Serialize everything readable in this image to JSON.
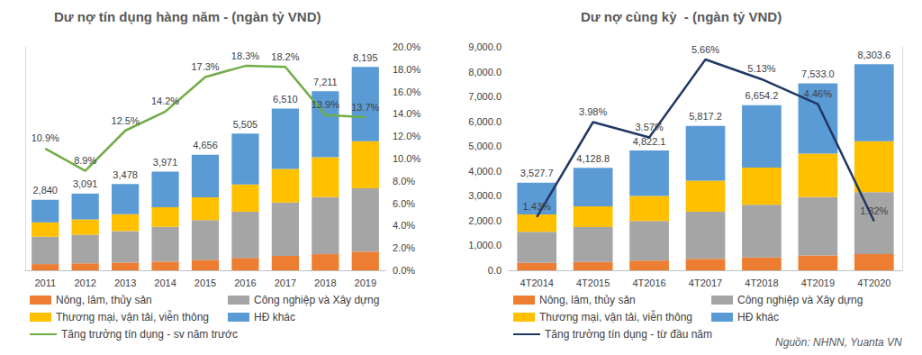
{
  "chart_data": [
    {
      "type": "bar",
      "title": "Dư nợ tín dụng hàng năm - (ngàn tỷ VND)",
      "categories": [
        "2011",
        "2012",
        "2013",
        "2014",
        "2015",
        "2016",
        "2017",
        "2018",
        "2019"
      ],
      "stacked": true,
      "data_labels": true,
      "ylim": [
        0,
        9000
      ],
      "yticks": [],
      "y2lim": [
        0,
        20
      ],
      "y2ticks": [
        {
          "value": 0,
          "label": "0.0%"
        },
        {
          "value": 2,
          "label": "2.0%"
        },
        {
          "value": 4,
          "label": "4.0%"
        },
        {
          "value": 6,
          "label": "6.0%"
        },
        {
          "value": 8,
          "label": "8.0%"
        },
        {
          "value": 10,
          "label": "10.0%"
        },
        {
          "value": 12,
          "label": "12.0%"
        },
        {
          "value": 14,
          "label": "14.0%"
        },
        {
          "value": 16,
          "label": "16.0%"
        },
        {
          "value": 18,
          "label": "18.0%"
        },
        {
          "value": 20,
          "label": "20.0%"
        }
      ],
      "totals": [
        2840,
        3091,
        3478,
        3971,
        4656,
        5505,
        6510,
        7211,
        8195
      ],
      "total_labels": [
        "2,840",
        "3,091",
        "3,478",
        "3,971",
        "4,656",
        "5,505",
        "6,510",
        "7,211",
        "8,195"
      ],
      "series": [
        {
          "name": "Nông, lâm, thủy sản",
          "color": "#ED7D31",
          "values": [
            250,
            280,
            310,
            350,
            420,
            500,
            580,
            650,
            750
          ]
        },
        {
          "name": "Công nghiệp và Xây dựng",
          "color": "#A5A5A5",
          "values": [
            1100,
            1150,
            1270,
            1400,
            1600,
            1860,
            2150,
            2300,
            2550
          ]
        },
        {
          "name": "Thương mại, vận tải, viễn thông",
          "color": "#FFC000",
          "values": [
            580,
            620,
            680,
            790,
            920,
            1100,
            1350,
            1600,
            1900
          ]
        },
        {
          "name": "HĐ khác",
          "color": "#5B9BD5",
          "values": [
            910,
            1041,
            1218,
            1431,
            1716,
            2045,
            2430,
            2661,
            2995
          ]
        },
        {
          "name": "Tăng trưởng tín dụng - sv năm trước",
          "type": "line",
          "axis": "y2",
          "color": "#70AD47",
          "values": [
            10.9,
            8.9,
            12.5,
            14.2,
            17.3,
            18.3,
            18.2,
            13.9,
            13.7
          ],
          "value_labels": [
            "10.9%",
            "8.9%",
            "12.5%",
            "14.2%",
            "17.3%",
            "18.3%",
            "18.2%",
            "13.9%",
            "13.7%"
          ]
        }
      ]
    },
    {
      "type": "bar",
      "title": "Dư nợ cùng kỳ  - (ngàn tỷ VND)",
      "categories": [
        "4T2014",
        "4T2015",
        "4T2016",
        "4T2017",
        "4T2018",
        "4T2019",
        "4T2020"
      ],
      "stacked": true,
      "data_labels": true,
      "ylim": [
        0,
        9000
      ],
      "yticks": [
        {
          "value": 0,
          "label": "0.0"
        },
        {
          "value": 1000,
          "label": "1,000.0"
        },
        {
          "value": 2000,
          "label": "2,000.0"
        },
        {
          "value": 3000,
          "label": "3,000.0"
        },
        {
          "value": 4000,
          "label": "4,000.0"
        },
        {
          "value": 5000,
          "label": "5,000.0"
        },
        {
          "value": 6000,
          "label": "6,000.0"
        },
        {
          "value": 7000,
          "label": "7,000.0"
        },
        {
          "value": 8000,
          "label": "8,000.0"
        },
        {
          "value": 9000,
          "label": "9,000.0"
        }
      ],
      "y2lim": [
        0,
        6
      ],
      "y2ticks": [],
      "totals": [
        3527.7,
        4128.8,
        4822.1,
        5817.2,
        6654.2,
        7533.0,
        8303.6
      ],
      "total_labels": [
        "3,527.7",
        "4,128.8",
        "4,822.1",
        "5,817.2",
        "6,654.2",
        "7,533.0",
        "8,303.6"
      ],
      "series": [
        {
          "name": "Nông, lâm, thủy sản",
          "color": "#ED7D31",
          "values": [
            300,
            340,
            390,
            460,
            520,
            600,
            650
          ]
        },
        {
          "name": "Công nghiệp và Xây dựng",
          "color": "#A5A5A5",
          "values": [
            1250,
            1400,
            1600,
            1900,
            2120,
            2350,
            2500
          ]
        },
        {
          "name": "Thương mại, vận tải, viễn thông",
          "color": "#FFC000",
          "values": [
            700,
            840,
            1000,
            1250,
            1500,
            1750,
            2050
          ]
        },
        {
          "name": "HĐ khác",
          "color": "#5B9BD5",
          "values": [
            1277.7,
            1548.8,
            1832.1,
            2207.2,
            2514.2,
            2833.0,
            3103.6
          ]
        },
        {
          "name": "Tăng trưởng tín dụng - từ đầu năm",
          "type": "line",
          "axis": "y2",
          "color": "#203864",
          "values": [
            1.43,
            3.98,
            3.57,
            5.66,
            5.13,
            4.46,
            1.32
          ],
          "value_labels": [
            "1.43%",
            "3.98%",
            "3.57%",
            "5.66%",
            "5.13%",
            "4.46%",
            "1.32%"
          ]
        }
      ]
    }
  ],
  "source": "Nguồn: NHNN, Yuanta VN"
}
